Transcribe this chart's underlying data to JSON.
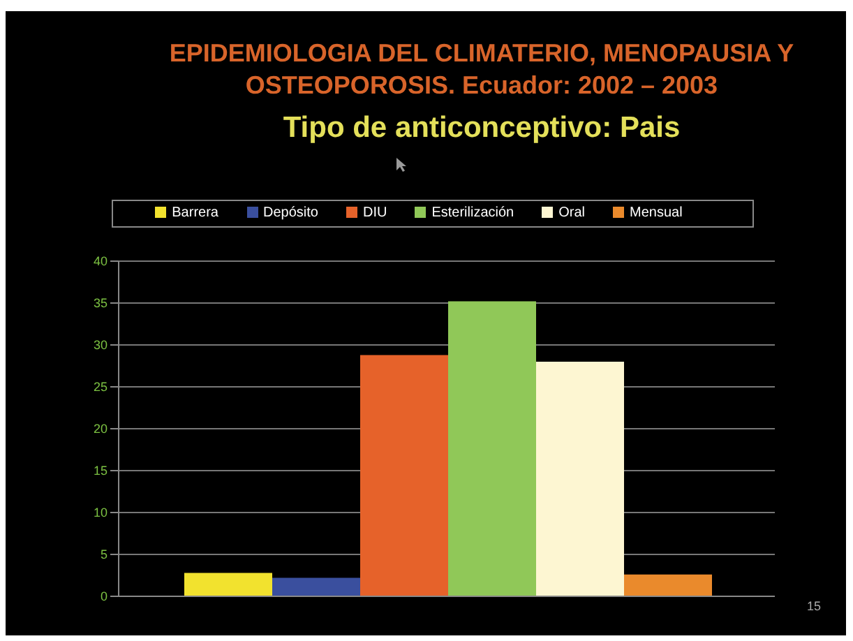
{
  "chart_data": {
    "type": "bar",
    "title": "EPIDEMIOLOGIA DEL CLIMATERIO, MENOPAUSIA Y OSTEOPOROSIS. Ecuador: 2002 – 2003",
    "subtitle": "Tipo de anticonceptivo: Pais",
    "categories": [
      null
    ],
    "series": [
      {
        "name": "Barrera",
        "color": "#f2e22e",
        "values": [
          2.8
        ]
      },
      {
        "name": "Depósito",
        "color": "#3a4f9e",
        "values": [
          2.2
        ]
      },
      {
        "name": "DIU",
        "color": "#e6622a",
        "values": [
          28.8
        ]
      },
      {
        "name": "Esterilización",
        "color": "#90c858",
        "values": [
          35.2
        ]
      },
      {
        "name": "Oral",
        "color": "#fdf6d2",
        "values": [
          28
        ]
      },
      {
        "name": "Mensual",
        "color": "#ea8a2c",
        "values": [
          2.6
        ]
      }
    ],
    "ylim": [
      0,
      40
    ],
    "yticks": [
      0,
      5,
      10,
      15,
      20,
      25,
      30,
      35,
      40
    ],
    "grid": "y",
    "legend": "top",
    "annotations": [
      "15"
    ]
  }
}
